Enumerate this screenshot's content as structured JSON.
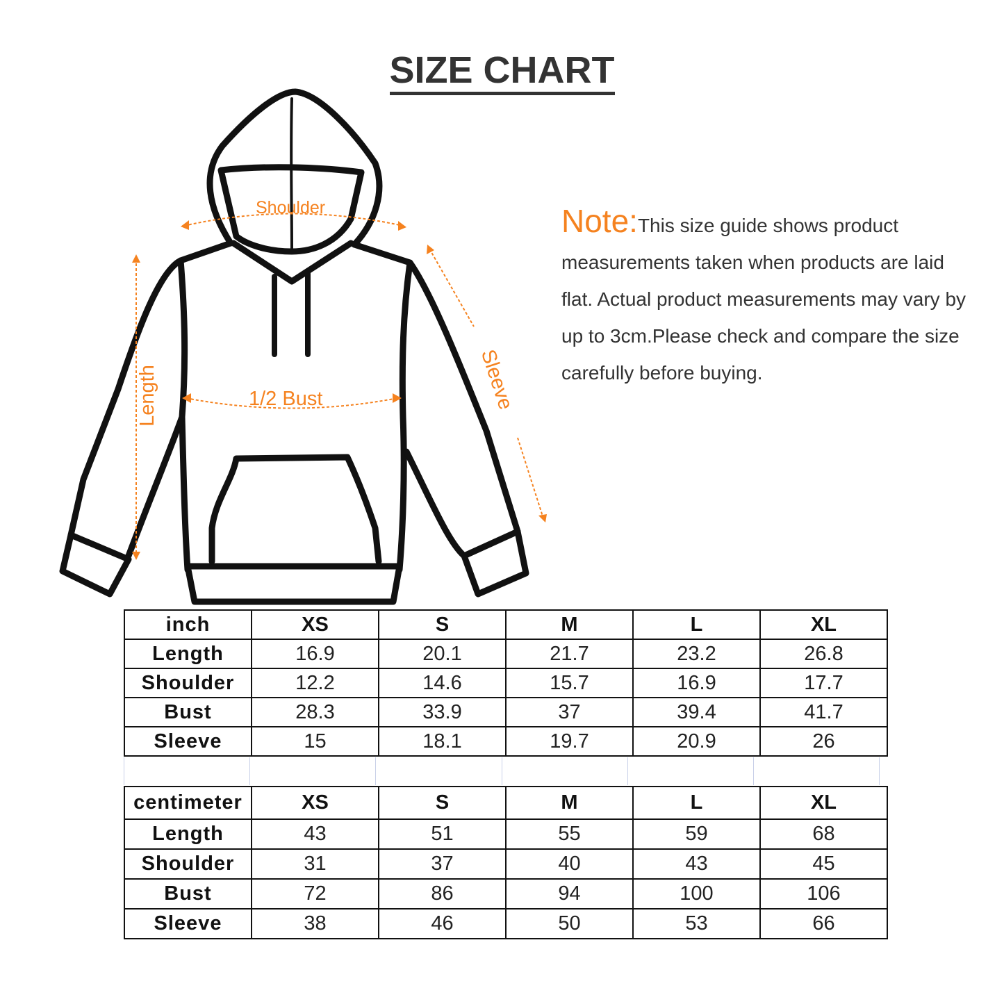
{
  "title": "SIZE CHART",
  "colors": {
    "accent": "#f5821f",
    "text": "#333333",
    "outline": "#111111"
  },
  "diagram": {
    "icon": "hoodie-outline",
    "labels": {
      "shoulder": "Shoulder",
      "bust": "1/2 Bust",
      "length": "Length",
      "sleeve": "Sleeve"
    }
  },
  "note": {
    "heading": "Note:",
    "text": "This size guide shows product measurements taken when products are laid flat. Actual product measurements may vary by up to 3cm.Please check and compare the size carefully before buying."
  },
  "tables": [
    {
      "unit": "inch",
      "sizes": [
        "XS",
        "S",
        "M",
        "L",
        "XL"
      ],
      "rows": [
        {
          "label": "Length",
          "values": [
            "16.9",
            "20.1",
            "21.7",
            "23.2",
            "26.8"
          ]
        },
        {
          "label": "Shoulder",
          "values": [
            "12.2",
            "14.6",
            "15.7",
            "16.9",
            "17.7"
          ]
        },
        {
          "label": "Bust",
          "values": [
            "28.3",
            "33.9",
            "37",
            "39.4",
            "41.7"
          ]
        },
        {
          "label": "Sleeve",
          "values": [
            "15",
            "18.1",
            "19.7",
            "20.9",
            "26"
          ]
        }
      ]
    },
    {
      "unit": "centimeter",
      "sizes": [
        "XS",
        "S",
        "M",
        "L",
        "XL"
      ],
      "rows": [
        {
          "label": "Length",
          "values": [
            "43",
            "51",
            "55",
            "59",
            "68"
          ]
        },
        {
          "label": "Shoulder",
          "values": [
            "31",
            "37",
            "40",
            "43",
            "45"
          ]
        },
        {
          "label": "Bust",
          "values": [
            "72",
            "86",
            "94",
            "100",
            "106"
          ]
        },
        {
          "label": "Sleeve",
          "values": [
            "38",
            "46",
            "50",
            "53",
            "66"
          ]
        }
      ]
    }
  ]
}
